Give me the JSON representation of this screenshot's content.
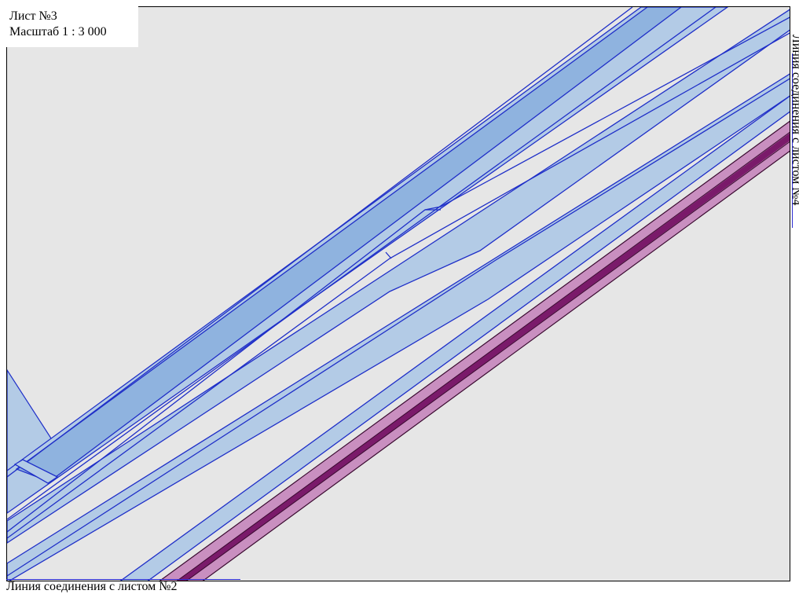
{
  "sheet": {
    "title": "Лист №3",
    "scale": "Масштаб 1 : 3 000"
  },
  "connections": {
    "bottom": "Линия соединения с листом №2",
    "right": "Линия соединения с листом №4"
  },
  "colors": {
    "background": "#e6e6e6",
    "road_fill": "#b3cbe6",
    "road_fill_dark": "#8fb3df",
    "road_stroke": "#1f2fc8",
    "pipeline_fill": "#c98fc0",
    "pipeline_core": "#7a1a6a",
    "pipeline_stroke": "#3a0a30"
  }
}
